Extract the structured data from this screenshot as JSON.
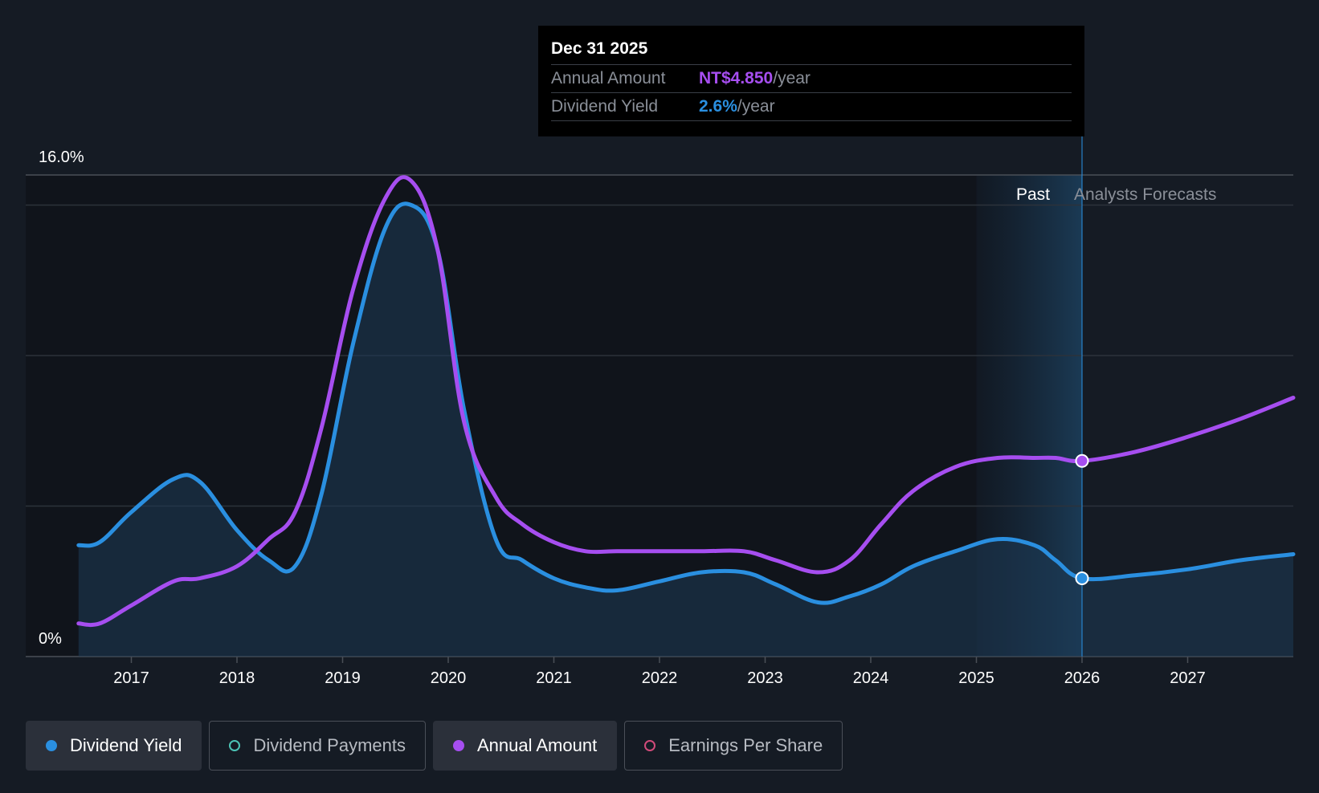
{
  "tooltip": {
    "date": "Dec 31 2025",
    "rows": [
      {
        "label": "Annual Amount",
        "value": "NT$4.850",
        "suffix": "/year"
      },
      {
        "label": "Dividend Yield",
        "value": "2.6%",
        "suffix": "/year"
      }
    ]
  },
  "legend": [
    {
      "label": "Dividend Yield",
      "color": "#2a8fe0",
      "active": true,
      "filled": true
    },
    {
      "label": "Dividend Payments",
      "color": "#4cc3b5",
      "active": false,
      "filled": false
    },
    {
      "label": "Annual Amount",
      "color": "#a64ef0",
      "active": true,
      "filled": true
    },
    {
      "label": "Earnings Per Share",
      "color": "#d14b7a",
      "active": false,
      "filled": false
    }
  ],
  "chart_data": {
    "type": "line",
    "title": "",
    "y_top_label": "16.0%",
    "y_bottom_label": "0%",
    "ylim": [
      0,
      16
    ],
    "xlim": [
      2016.0,
      2028.0
    ],
    "x_ticks": [
      2017,
      2018,
      2019,
      2020,
      2021,
      2022,
      2023,
      2024,
      2025,
      2026,
      2027
    ],
    "x_tick_labels": [
      "2017",
      "2018",
      "2019",
      "2020",
      "2021",
      "2022",
      "2023",
      "2024",
      "2025",
      "2026",
      "2027"
    ],
    "gridlines_y": [
      15,
      10,
      5
    ],
    "past_label": "Past",
    "forecast_label": "Analysts Forecasts",
    "past_band": [
      2025.0,
      2026.0
    ],
    "highlight": {
      "x": 2026.0
    },
    "series": [
      {
        "name": "Dividend Yield",
        "color": "#2a8fe0",
        "area": true,
        "x": [
          2016.5,
          2016.7,
          2017.0,
          2017.4,
          2017.65,
          2018.0,
          2018.3,
          2018.55,
          2018.8,
          2019.1,
          2019.4,
          2019.65,
          2019.9,
          2020.15,
          2020.45,
          2020.7,
          2021.0,
          2021.3,
          2021.6,
          2022.0,
          2022.4,
          2022.8,
          2023.1,
          2023.5,
          2023.8,
          2024.1,
          2024.4,
          2024.8,
          2025.2,
          2025.55,
          2025.75,
          2026.0,
          2026.5,
          2027.0,
          2027.5,
          2028.0
        ],
        "y": [
          3.7,
          3.8,
          4.8,
          5.9,
          5.8,
          4.2,
          3.2,
          3.0,
          5.4,
          10.4,
          14.2,
          15.0,
          13.5,
          8.2,
          3.9,
          3.2,
          2.6,
          2.3,
          2.2,
          2.5,
          2.8,
          2.8,
          2.4,
          1.8,
          2.0,
          2.4,
          3.0,
          3.5,
          3.9,
          3.7,
          3.2,
          2.6,
          2.7,
          2.9,
          3.2,
          3.4
        ]
      },
      {
        "name": "Annual Amount",
        "color": "#a64ef0",
        "area": false,
        "x": [
          2016.5,
          2016.7,
          2017.0,
          2017.4,
          2017.65,
          2018.0,
          2018.3,
          2018.55,
          2018.8,
          2019.1,
          2019.4,
          2019.65,
          2019.9,
          2020.15,
          2020.45,
          2020.7,
          2021.0,
          2021.3,
          2021.6,
          2022.0,
          2022.4,
          2022.8,
          2023.1,
          2023.5,
          2023.8,
          2024.1,
          2024.4,
          2024.8,
          2025.2,
          2025.55,
          2025.75,
          2026.0,
          2026.5,
          2027.0,
          2027.5,
          2028.0
        ],
        "y": [
          1.1,
          1.1,
          1.7,
          2.5,
          2.6,
          3.0,
          3.9,
          4.8,
          7.6,
          12.2,
          15.2,
          15.8,
          13.5,
          7.8,
          5.3,
          4.4,
          3.8,
          3.5,
          3.5,
          3.5,
          3.5,
          3.5,
          3.2,
          2.8,
          3.2,
          4.4,
          5.5,
          6.3,
          6.6,
          6.6,
          6.6,
          6.5,
          6.8,
          7.3,
          7.9,
          8.6
        ]
      }
    ]
  }
}
